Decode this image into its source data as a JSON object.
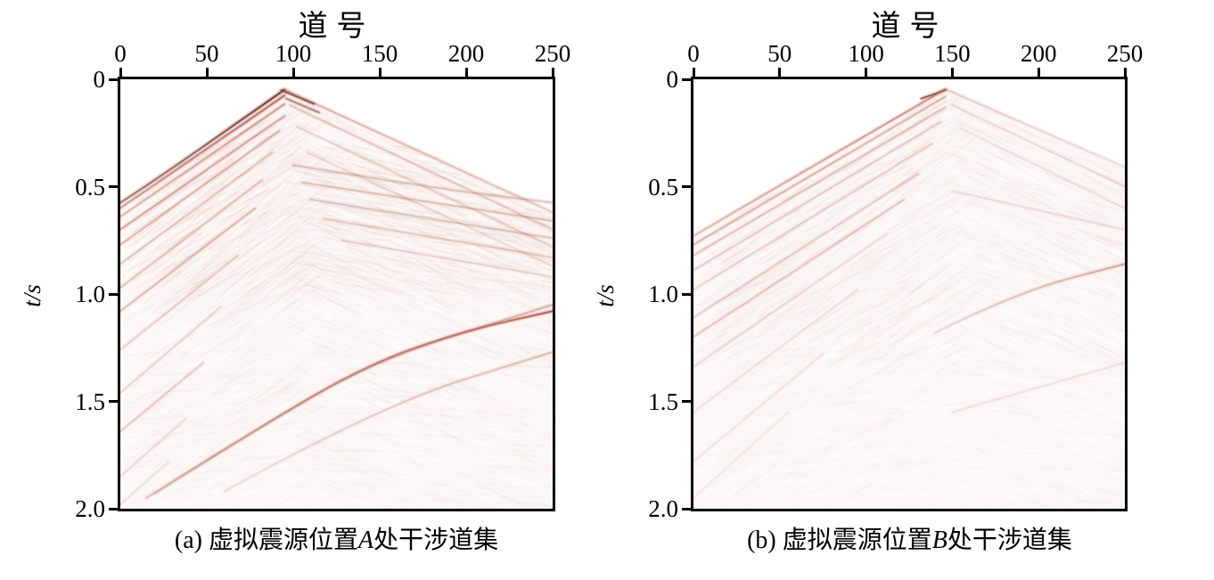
{
  "colors": {
    "axis": "#000000",
    "background": "#ffffff",
    "amplitude_strong_dark": "#261a1a",
    "amplitude_strong_red": "#9e2c1e",
    "amplitude_mid_red": "#ba5c48",
    "amplitude_halo_pink": "#d6928",
    "amplitude_noise_pink": "#cd877a"
  },
  "panels": [
    {
      "key": "a",
      "x_axis": {
        "title": "道号",
        "tick_labels": [
          "0",
          "50",
          "100",
          "150",
          "200",
          "250"
        ]
      },
      "y_axis": {
        "title": "t/s",
        "tick_labels": [
          "0",
          "0.5",
          "1.0",
          "1.5",
          "2.0"
        ]
      },
      "caption": {
        "pre": "(a) 虚拟震源位置",
        "letter": "A",
        "post": "处干涉道集"
      }
    },
    {
      "key": "b",
      "x_axis": {
        "title": "道号",
        "tick_labels": [
          "0",
          "50",
          "100",
          "150",
          "200",
          "250"
        ]
      },
      "y_axis": {
        "title": "t/s",
        "tick_labels": [
          "0",
          "0.5",
          "1.0",
          "1.5",
          "2.0"
        ]
      },
      "caption": {
        "pre": "(b) 虚拟震源位置",
        "letter": "B",
        "post": "处干涉道集"
      }
    }
  ],
  "chart_data": [
    {
      "type": "heatmap",
      "panel": "a",
      "title": "(a) 虚拟震源位置A处干涉道集",
      "xlabel": "道号",
      "ylabel": "t/s",
      "xlim": [
        0,
        250
      ],
      "ylim": [
        0,
        2.0
      ],
      "x_ticks": [
        0,
        50,
        100,
        150,
        200,
        250
      ],
      "y_ticks": [
        0,
        0.5,
        1.0,
        1.5,
        2.0
      ],
      "palette": "white = zero amplitude, pink/red = weak-strong, black = strongest",
      "virtual_source": {
        "apex_trace": 95,
        "apex_time_s": 0.048
      },
      "first_arrival_mask": [
        [
          0,
          0.575
        ],
        [
          95,
          0.048
        ],
        [
          250,
          0.62
        ]
      ],
      "noise": {
        "seed": 11,
        "streaks": 2400,
        "base_alpha": 0.09,
        "bands": [
          {
            "x": [
              95,
              250
            ],
            "t": [
              0.28,
              0.98
            ],
            "count": 750,
            "slope": 0.0015,
            "alpha": 0.1
          },
          {
            "x": [
              0,
              100
            ],
            "t": [
              0.05,
              1.05
            ],
            "count": 520,
            "slope": -0.0054,
            "alpha": 0.11
          }
        ]
      },
      "events": [
        {
          "name": "direct-left-main",
          "tone": "dark",
          "amp": 1.0,
          "amp_end": 0.55,
          "picks": [
            [
              95,
              0.048
            ],
            [
              60,
              0.245
            ],
            [
              30,
              0.415
            ],
            [
              0,
              0.575
            ]
          ]
        },
        {
          "name": "apex-dash-1",
          "tone": "dark",
          "amp": 0.8,
          "picks": [
            [
              93,
              0.05
            ],
            [
              112,
              0.115
            ]
          ]
        },
        {
          "name": "apex-dash-2",
          "tone": "dark",
          "amp": 0.5,
          "picks": [
            [
              96,
              0.09
            ],
            [
              115,
              0.155
            ]
          ]
        },
        {
          "name": "direct-left-double",
          "tone": "red",
          "amp": 0.75,
          "amp_end": 0.4,
          "picks": [
            [
              95,
              0.075
            ],
            [
              0,
              0.6
            ]
          ]
        },
        {
          "name": "left-multiple-1",
          "tone": "red",
          "amp": 0.5,
          "amp_end": 0.3,
          "picks": [
            [
              95,
              0.115
            ],
            [
              0,
              0.64
            ]
          ]
        },
        {
          "name": "left-multiple-2",
          "tone": "red",
          "amp": 0.38,
          "picks": [
            [
              95,
              0.17
            ],
            [
              0,
              0.7
            ]
          ]
        },
        {
          "name": "left-multiple-3",
          "tone": "red",
          "amp": 0.3,
          "picks": [
            [
              92,
              0.24
            ],
            [
              0,
              0.77
            ]
          ]
        },
        {
          "name": "left-multiple-4",
          "tone": "red",
          "amp": 0.24,
          "picks": [
            [
              88,
              0.34
            ],
            [
              0,
              0.86
            ]
          ]
        },
        {
          "name": "left-multiple-5",
          "tone": "red",
          "amp": 0.26,
          "picks": [
            [
              82,
              0.47
            ],
            [
              0,
              0.97
            ]
          ]
        },
        {
          "name": "left-multiple-6",
          "tone": "red",
          "amp": 0.28,
          "picks": [
            [
              78,
              0.6
            ],
            [
              0,
              1.08
            ]
          ]
        },
        {
          "name": "left-multiple-7",
          "tone": "red",
          "amp": 0.18,
          "picks": [
            [
              68,
              0.82
            ],
            [
              0,
              1.26
            ]
          ]
        },
        {
          "name": "left-multiple-8",
          "tone": "red",
          "amp": 0.16,
          "picks": [
            [
              58,
              1.06
            ],
            [
              0,
              1.46
            ]
          ]
        },
        {
          "name": "left-multiple-9",
          "tone": "red",
          "amp": 0.2,
          "picks": [
            [
              48,
              1.32
            ],
            [
              0,
              1.64
            ]
          ]
        },
        {
          "name": "left-multiple-10",
          "tone": "red",
          "amp": 0.13,
          "picks": [
            [
              38,
              1.58
            ],
            [
              0,
              1.85
            ]
          ]
        },
        {
          "name": "left-multiple-11",
          "tone": "red",
          "amp": 0.11,
          "picks": [
            [
              28,
              1.78
            ],
            [
              0,
              1.98
            ]
          ]
        },
        {
          "name": "direct-right",
          "tone": "red",
          "amp": 0.35,
          "amp_end": 0.22,
          "picks": [
            [
              95,
              0.048
            ],
            [
              250,
              0.62
            ]
          ]
        },
        {
          "name": "right-multiple-1",
          "tone": "red",
          "amp": 0.22,
          "picks": [
            [
              98,
              0.12
            ],
            [
              250,
              0.7
            ]
          ]
        },
        {
          "name": "right-multiple-2",
          "tone": "red",
          "amp": 0.17,
          "picks": [
            [
              102,
              0.22
            ],
            [
              250,
              0.78
            ]
          ]
        },
        {
          "name": "right-multiple-3",
          "tone": "red",
          "amp": 0.14,
          "picks": [
            [
              108,
              0.34
            ],
            [
              250,
              0.87
            ]
          ]
        },
        {
          "name": "mid-gentle-1",
          "tone": "gray",
          "amp": 0.3,
          "picks": [
            [
              100,
              0.4
            ],
            [
              175,
              0.5
            ],
            [
              250,
              0.575
            ]
          ]
        },
        {
          "name": "mid-gentle-2",
          "tone": "red",
          "amp": 0.26,
          "picks": [
            [
              105,
              0.48
            ],
            [
              250,
              0.66
            ]
          ]
        },
        {
          "name": "mid-gentle-3",
          "tone": "gray",
          "amp": 0.28,
          "picks": [
            [
              110,
              0.56
            ],
            [
              250,
              0.74
            ]
          ]
        },
        {
          "name": "mid-gentle-4",
          "tone": "red",
          "amp": 0.2,
          "picks": [
            [
              118,
              0.65
            ],
            [
              250,
              0.83
            ]
          ]
        },
        {
          "name": "mid-gentle-5",
          "tone": "red",
          "amp": 0.16,
          "picks": [
            [
              128,
              0.75
            ],
            [
              250,
              0.92
            ]
          ]
        },
        {
          "name": "deep-curve-main",
          "tone": "red",
          "amp": 0.25,
          "amp_end": 0.85,
          "picks": [
            [
              15,
              1.95
            ],
            [
              80,
              1.62
            ],
            [
              145,
              1.32
            ],
            [
              200,
              1.17
            ],
            [
              250,
              1.08
            ]
          ]
        },
        {
          "name": "deep-curve-strand",
          "tone": "gray",
          "amp": 0.15,
          "amp_end": 0.4,
          "picks": [
            [
              20,
              1.93
            ],
            [
              85,
              1.6
            ],
            [
              150,
              1.3
            ],
            [
              250,
              1.05
            ]
          ]
        },
        {
          "name": "deep-curve-echo",
          "tone": "red",
          "amp": 0.12,
          "amp_end": 0.3,
          "picks": [
            [
              60,
              1.92
            ],
            [
              150,
              1.52
            ],
            [
              250,
              1.27
            ]
          ]
        }
      ]
    },
    {
      "type": "heatmap",
      "panel": "b",
      "title": "(b) 虚拟震源位置B处干涉道集",
      "xlabel": "道号",
      "ylabel": "t/s",
      "xlim": [
        0,
        250
      ],
      "ylim": [
        0,
        2.0
      ],
      "x_ticks": [
        0,
        50,
        100,
        150,
        200,
        250
      ],
      "y_ticks": [
        0,
        0.5,
        1.0,
        1.5,
        2.0
      ],
      "palette": "white = zero amplitude, pink/red = weak-strong, black = strongest",
      "virtual_source": {
        "apex_trace": 146,
        "apex_time_s": 0.046
      },
      "first_arrival_mask": [
        [
          0,
          0.73
        ],
        [
          146,
          0.046
        ],
        [
          250,
          0.41
        ]
      ],
      "noise": {
        "seed": 23,
        "streaks": 2000,
        "base_alpha": 0.075,
        "bands": [
          {
            "x": [
              0,
              146
            ],
            "t": [
              0.05,
              1.35
            ],
            "count": 650,
            "slope": -0.0047,
            "alpha": 0.085
          },
          {
            "x": [
              146,
              250
            ],
            "t": [
              0.08,
              0.9
            ],
            "count": 350,
            "slope": 0.0033,
            "alpha": 0.06
          }
        ]
      },
      "events": [
        {
          "name": "apex-dash",
          "tone": "dark",
          "amp": 0.75,
          "picks": [
            [
              132,
              0.09
            ],
            [
              146,
              0.05
            ]
          ]
        },
        {
          "name": "direct-left-main",
          "tone": "red",
          "amp": 0.5,
          "amp_end": 0.28,
          "picks": [
            [
              146,
              0.046
            ],
            [
              70,
              0.4
            ],
            [
              0,
              0.73
            ]
          ]
        },
        {
          "name": "direct-left-double",
          "tone": "red",
          "amp": 0.3,
          "picks": [
            [
              146,
              0.08
            ],
            [
              0,
              0.77
            ]
          ]
        },
        {
          "name": "left-multiple-1",
          "tone": "red",
          "amp": 0.24,
          "picks": [
            [
              146,
              0.13
            ],
            [
              0,
              0.82
            ]
          ]
        },
        {
          "name": "left-multiple-2",
          "tone": "red",
          "amp": 0.2,
          "picks": [
            [
              143,
              0.2
            ],
            [
              0,
              0.89
            ]
          ]
        },
        {
          "name": "left-multiple-3",
          "tone": "red",
          "amp": 0.17,
          "picks": [
            [
              138,
              0.3
            ],
            [
              0,
              0.98
            ]
          ]
        },
        {
          "name": "left-multiple-4",
          "tone": "red",
          "amp": 0.2,
          "picks": [
            [
              130,
              0.44
            ],
            [
              0,
              1.11
            ]
          ]
        },
        {
          "name": "left-multiple-5",
          "tone": "red",
          "amp": 0.22,
          "picks": [
            [
              122,
              0.56
            ],
            [
              0,
              1.2
            ]
          ]
        },
        {
          "name": "left-multiple-6",
          "tone": "red",
          "amp": 0.14,
          "picks": [
            [
              112,
              0.72
            ],
            [
              0,
              1.34
            ]
          ]
        },
        {
          "name": "left-multiple-7",
          "tone": "red",
          "amp": 0.11,
          "picks": [
            [
              95,
              0.98
            ],
            [
              0,
              1.55
            ]
          ]
        },
        {
          "name": "left-multiple-8",
          "tone": "red",
          "amp": 0.09,
          "picks": [
            [
              75,
              1.28
            ],
            [
              0,
              1.78
            ]
          ]
        },
        {
          "name": "left-multiple-9",
          "tone": "red",
          "amp": 0.07,
          "picks": [
            [
              55,
              1.55
            ],
            [
              0,
              1.95
            ]
          ]
        },
        {
          "name": "direct-right",
          "tone": "red",
          "amp": 0.2,
          "amp_end": 0.12,
          "picks": [
            [
              146,
              0.046
            ],
            [
              250,
              0.41
            ]
          ]
        },
        {
          "name": "right-multiple-1",
          "tone": "red",
          "amp": 0.13,
          "picks": [
            [
              150,
              0.12
            ],
            [
              250,
              0.5
            ]
          ]
        },
        {
          "name": "right-multiple-2",
          "tone": "red",
          "amp": 0.1,
          "picks": [
            [
              155,
              0.23
            ],
            [
              250,
              0.6
            ]
          ]
        },
        {
          "name": "mid-gentle-1",
          "tone": "red",
          "amp": 0.12,
          "picks": [
            [
              150,
              0.52
            ],
            [
              250,
              0.7
            ]
          ]
        },
        {
          "name": "right-red-event",
          "tone": "red",
          "amp": 0.15,
          "amp_end": 0.4,
          "picks": [
            [
              140,
              1.18
            ],
            [
              188,
              0.99
            ],
            [
              250,
              0.86
            ]
          ]
        },
        {
          "name": "deep-faint",
          "tone": "red",
          "amp": 0.1,
          "picks": [
            [
              150,
              1.55
            ],
            [
              250,
              1.32
            ]
          ]
        }
      ]
    }
  ]
}
